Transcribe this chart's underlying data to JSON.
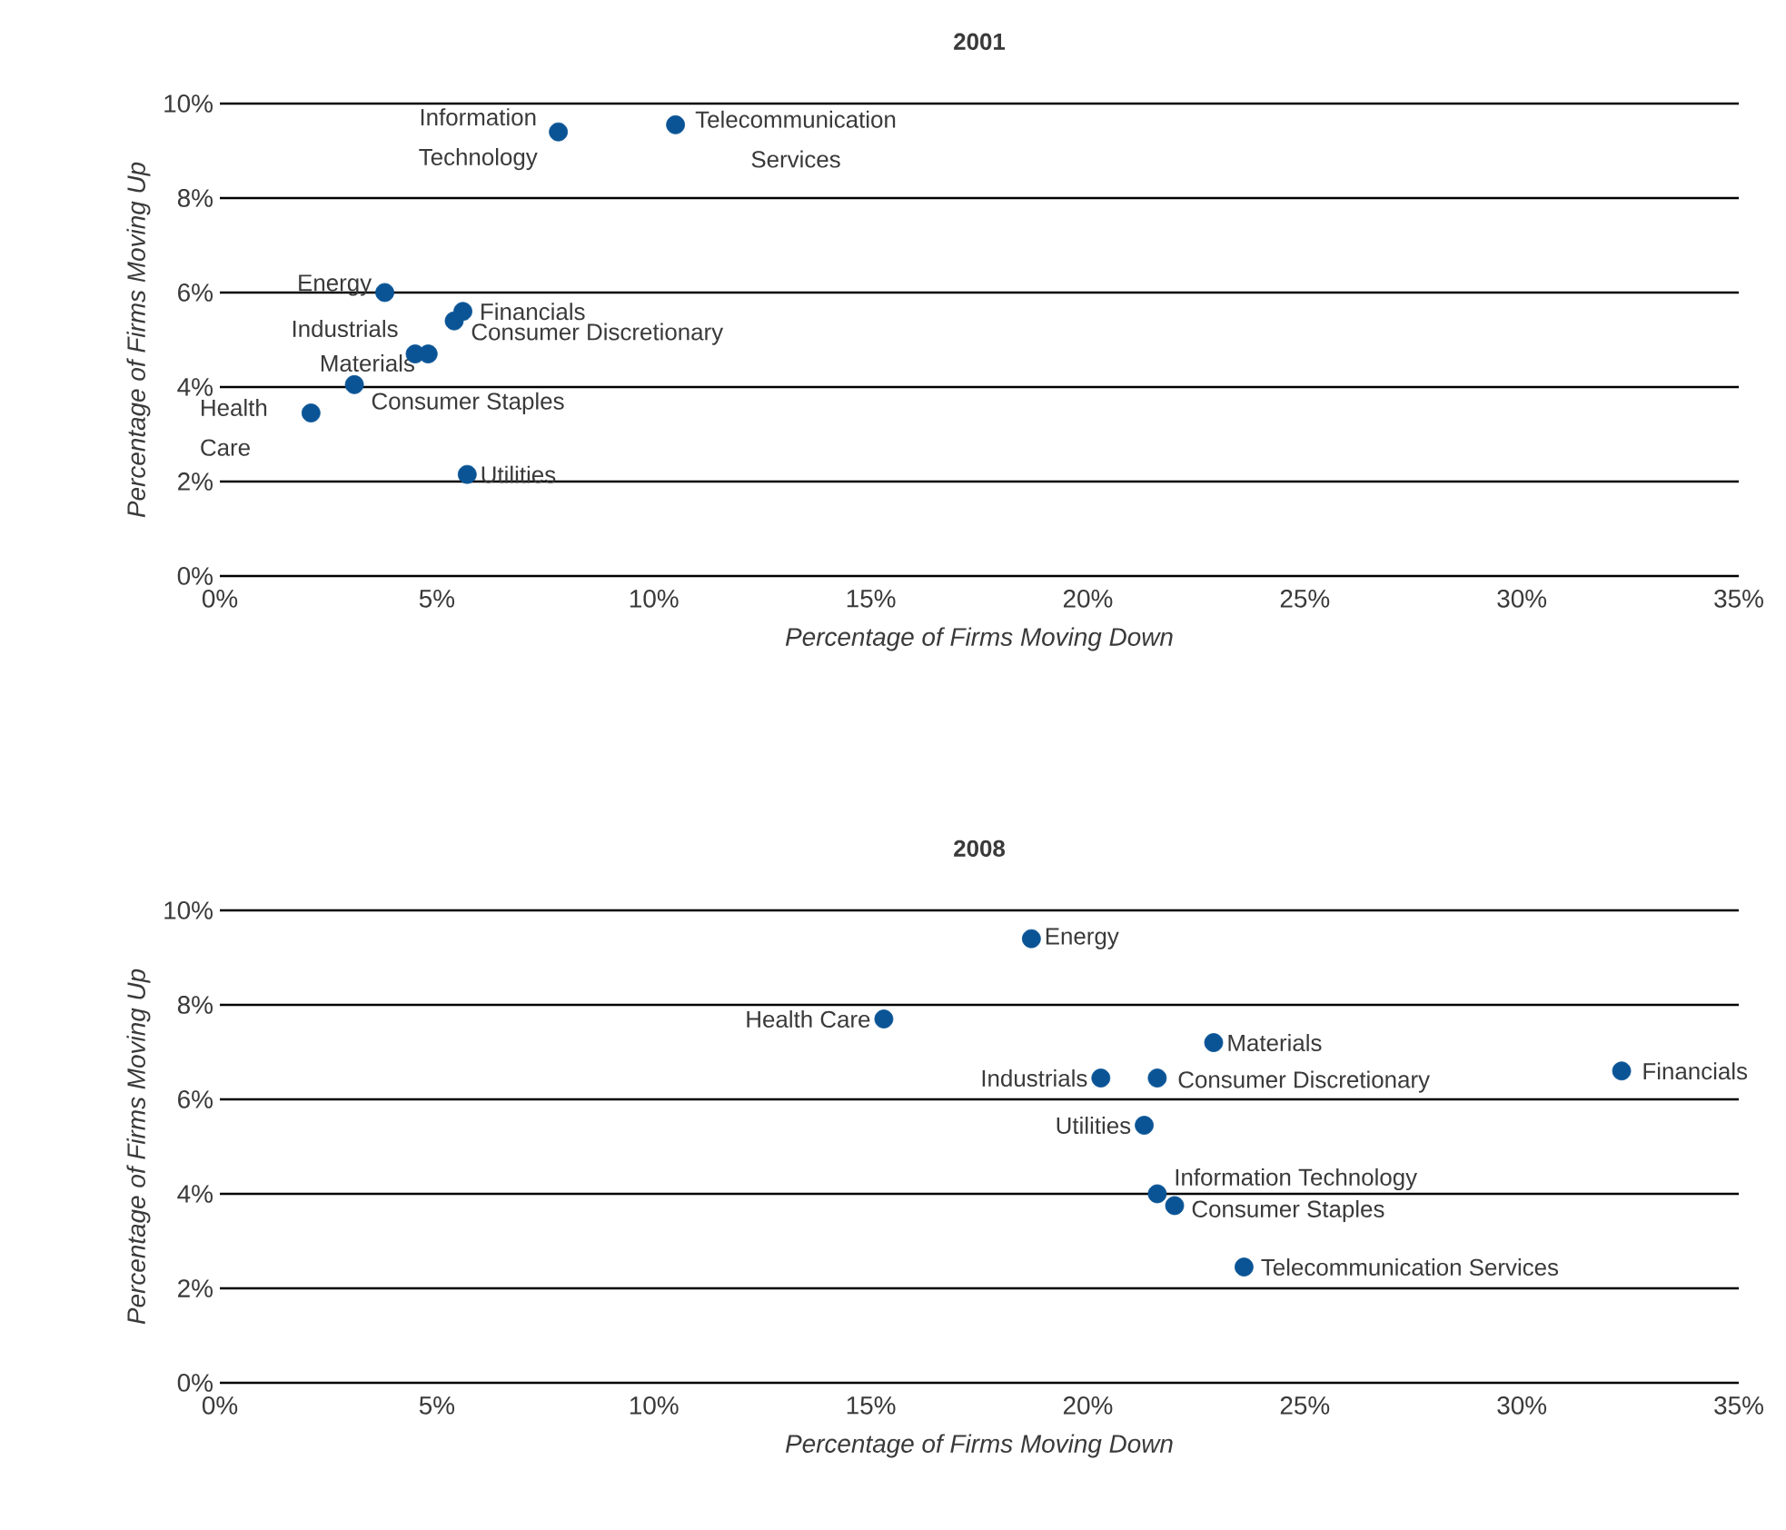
{
  "chart_data": [
    {
      "type": "scatter",
      "title": "2001",
      "xlabel": "Percentage of Firms Moving Down",
      "ylabel": "Percentage of Firms Moving Up",
      "xlim": [
        0,
        35
      ],
      "ylim": [
        0,
        10
      ],
      "xticks": [
        {
          "value": 0,
          "label": "0%"
        },
        {
          "value": 5,
          "label": "5%"
        },
        {
          "value": 10,
          "label": "10%"
        },
        {
          "value": 15,
          "label": "15%"
        },
        {
          "value": 20,
          "label": "20%"
        },
        {
          "value": 25,
          "label": "25%"
        },
        {
          "value": 30,
          "label": "30%"
        },
        {
          "value": 35,
          "label": "35%"
        }
      ],
      "yticks": [
        {
          "value": 0,
          "label": "0%"
        },
        {
          "value": 2,
          "label": "2%"
        },
        {
          "value": 4,
          "label": "4%"
        },
        {
          "value": 6,
          "label": "6%"
        },
        {
          "value": 8,
          "label": "8%"
        },
        {
          "value": 10,
          "label": "10%"
        }
      ],
      "grid": "y",
      "marker": "circle",
      "series": [
        {
          "name": "Information Technology",
          "color": "#0a5496",
          "x": [
            7.8
          ],
          "values": [
            9.4
          ]
        },
        {
          "name": "Telecommunication Services",
          "color": "#0a5496",
          "x": [
            10.5
          ],
          "values": [
            9.55
          ]
        },
        {
          "name": "Energy",
          "color": "#0a5496",
          "x": [
            3.8
          ],
          "values": [
            6.0
          ]
        },
        {
          "name": "Financials",
          "color": "#0a5496",
          "x": [
            5.6
          ],
          "values": [
            5.6
          ]
        },
        {
          "name": "Consumer Discretionary",
          "color": "#0a5496",
          "x": [
            5.4
          ],
          "values": [
            5.4
          ]
        },
        {
          "name": "Industrials",
          "color": "#0a5496",
          "x": [
            4.5
          ],
          "values": [
            4.7
          ]
        },
        {
          "name": "Materials",
          "color": "#0a5496",
          "x": [
            4.8
          ],
          "values": [
            4.7
          ]
        },
        {
          "name": "Consumer Staples",
          "color": "#0a5496",
          "x": [
            3.1
          ],
          "values": [
            4.05
          ]
        },
        {
          "name": "Health Care",
          "color": "#0a5496",
          "x": [
            2.1
          ],
          "values": [
            3.45
          ]
        },
        {
          "name": "Utilities",
          "color": "#0a5496",
          "x": [
            5.7
          ],
          "values": [
            2.15
          ]
        }
      ]
    },
    {
      "type": "scatter",
      "title": "2008",
      "xlabel": "Percentage of Firms Moving Down",
      "ylabel": "Percentage of Firms Moving Up",
      "xlim": [
        0,
        35
      ],
      "ylim": [
        0,
        10
      ],
      "xticks": [
        {
          "value": 0,
          "label": "0%"
        },
        {
          "value": 5,
          "label": "5%"
        },
        {
          "value": 10,
          "label": "10%"
        },
        {
          "value": 15,
          "label": "15%"
        },
        {
          "value": 20,
          "label": "20%"
        },
        {
          "value": 25,
          "label": "25%"
        },
        {
          "value": 30,
          "label": "30%"
        },
        {
          "value": 35,
          "label": "35%"
        }
      ],
      "yticks": [
        {
          "value": 0,
          "label": "0%"
        },
        {
          "value": 2,
          "label": "2%"
        },
        {
          "value": 4,
          "label": "4%"
        },
        {
          "value": 6,
          "label": "6%"
        },
        {
          "value": 8,
          "label": "8%"
        },
        {
          "value": 10,
          "label": "10%"
        }
      ],
      "grid": "y",
      "marker": "circle",
      "series": [
        {
          "name": "Energy",
          "color": "#0a5496",
          "x": [
            18.7
          ],
          "values": [
            9.4
          ]
        },
        {
          "name": "Health Care",
          "color": "#0a5496",
          "x": [
            15.3
          ],
          "values": [
            7.7
          ]
        },
        {
          "name": "Materials",
          "color": "#0a5496",
          "x": [
            22.9
          ],
          "values": [
            7.2
          ]
        },
        {
          "name": "Financials",
          "color": "#0a5496",
          "x": [
            32.3
          ],
          "values": [
            6.6
          ]
        },
        {
          "name": "Industrials",
          "color": "#0a5496",
          "x": [
            20.3
          ],
          "values": [
            6.45
          ]
        },
        {
          "name": "Consumer Discretionary",
          "color": "#0a5496",
          "x": [
            21.6
          ],
          "values": [
            6.45
          ]
        },
        {
          "name": "Utilities",
          "color": "#0a5496",
          "x": [
            21.3
          ],
          "values": [
            5.45
          ]
        },
        {
          "name": "Information Technology",
          "color": "#0a5496",
          "x": [
            21.6
          ],
          "values": [
            4.0
          ]
        },
        {
          "name": "Consumer Staples",
          "color": "#0a5496",
          "x": [
            22.0
          ],
          "values": [
            3.75
          ]
        },
        {
          "name": "Telecommunication Services",
          "color": "#0a5496",
          "x": [
            23.6
          ],
          "values": [
            2.45
          ]
        }
      ]
    }
  ]
}
